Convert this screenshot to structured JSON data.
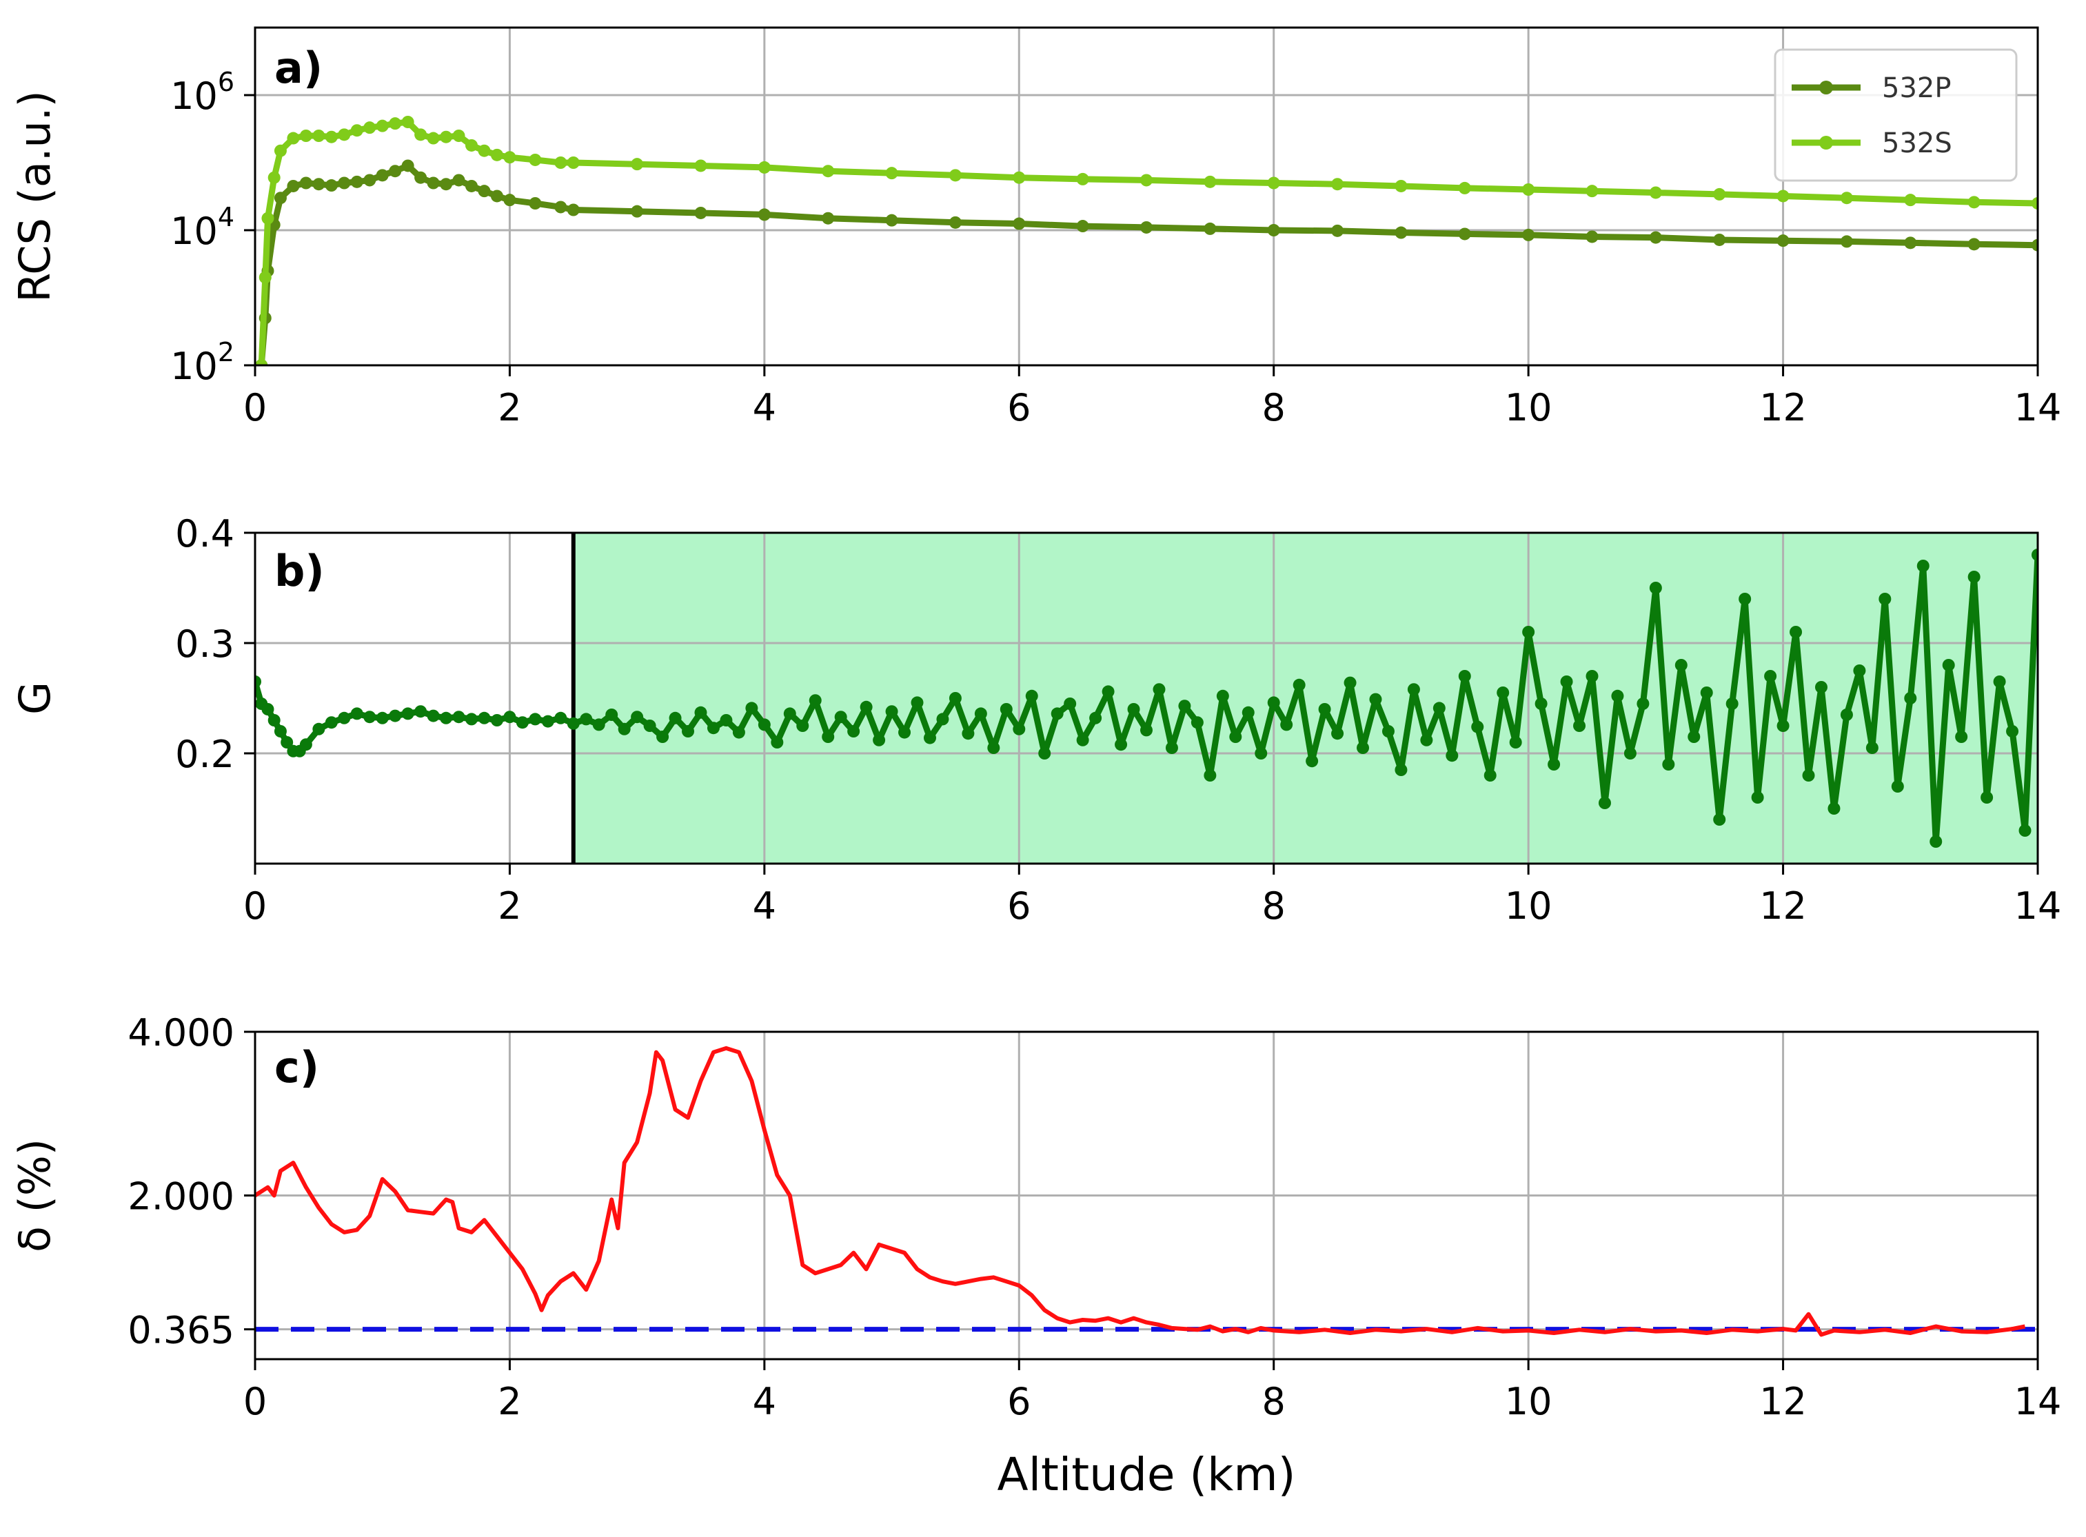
{
  "chart_data": [
    {
      "panel_label": "a)",
      "type": "line",
      "ylabel": "RCS (a.u.)",
      "yscale": "log",
      "xlim": [
        0,
        14
      ],
      "ylim": [
        100,
        10000000
      ],
      "xticks": [
        "0",
        "2",
        "4",
        "6",
        "8",
        "10",
        "12",
        "14"
      ],
      "xtick_values": [
        0,
        2,
        4,
        6,
        8,
        10,
        12,
        14
      ],
      "ytick_values": [
        100,
        10000,
        1000000
      ],
      "yticks": [
        {
          "base": "10",
          "exp": "2"
        },
        {
          "base": "10",
          "exp": "4"
        },
        {
          "base": "10",
          "exp": "6"
        }
      ],
      "grid": true,
      "legend": "top-right",
      "series": [
        {
          "name": "532P",
          "color": "#5a8a12",
          "x": [
            0.05,
            0.08,
            0.1,
            0.15,
            0.2,
            0.3,
            0.4,
            0.5,
            0.6,
            0.7,
            0.8,
            0.9,
            1.0,
            1.1,
            1.2,
            1.3,
            1.4,
            1.5,
            1.6,
            1.7,
            1.8,
            1.9,
            2.0,
            2.2,
            2.4,
            2.5,
            3.0,
            3.5,
            4.0,
            4.5,
            5.0,
            5.5,
            6.0,
            6.5,
            7.0,
            7.5,
            8.0,
            8.5,
            9.0,
            9.5,
            10.0,
            10.5,
            11.0,
            11.5,
            12.0,
            12.5,
            13.0,
            13.5,
            14.0
          ],
          "y": [
            100,
            500,
            2500,
            12000,
            30000,
            45000,
            50000,
            48000,
            46000,
            50000,
            52000,
            55000,
            65000,
            75000,
            90000,
            60000,
            50000,
            48000,
            55000,
            45000,
            38000,
            32000,
            28000,
            25000,
            22000,
            20000,
            19000,
            18000,
            17000,
            15000,
            14000,
            13000,
            12500,
            11500,
            11000,
            10500,
            10000,
            9800,
            9200,
            8800,
            8500,
            8000,
            7800,
            7200,
            7000,
            6800,
            6500,
            6200,
            6000
          ]
        },
        {
          "name": "532S",
          "color": "#80cc1a",
          "x": [
            0.05,
            0.08,
            0.1,
            0.15,
            0.2,
            0.3,
            0.4,
            0.5,
            0.6,
            0.7,
            0.8,
            0.9,
            1.0,
            1.1,
            1.2,
            1.3,
            1.4,
            1.5,
            1.6,
            1.7,
            1.8,
            1.9,
            2.0,
            2.2,
            2.4,
            2.5,
            3.0,
            3.5,
            4.0,
            4.5,
            5.0,
            5.5,
            6.0,
            6.5,
            7.0,
            7.5,
            8.0,
            8.5,
            9.0,
            9.5,
            10.0,
            10.5,
            11.0,
            11.5,
            12.0,
            12.5,
            13.0,
            13.5,
            14.0
          ],
          "y": [
            100,
            2000,
            15000,
            60000,
            150000,
            230000,
            250000,
            250000,
            240000,
            260000,
            300000,
            330000,
            350000,
            380000,
            400000,
            260000,
            230000,
            240000,
            250000,
            180000,
            150000,
            130000,
            120000,
            110000,
            100000,
            100000,
            95000,
            90000,
            85000,
            75000,
            70000,
            65000,
            60000,
            57000,
            55000,
            52000,
            50000,
            48000,
            45000,
            42000,
            40000,
            38000,
            36000,
            34000,
            32000,
            30000,
            28000,
            26000,
            25000
          ]
        }
      ]
    },
    {
      "panel_label": "b)",
      "type": "line",
      "ylabel": "G",
      "xlim": [
        0,
        14
      ],
      "ylim": [
        0.1,
        0.4
      ],
      "xticks": [
        "0",
        "2",
        "4",
        "6",
        "8",
        "10",
        "12",
        "14"
      ],
      "xtick_values": [
        0,
        2,
        4,
        6,
        8,
        10,
        12,
        14
      ],
      "yticks": [
        "0.2",
        "0.3",
        "0.4"
      ],
      "ytick_values": [
        0.2,
        0.3,
        0.4
      ],
      "grid": true,
      "shaded_region": {
        "x_from": 2.5,
        "x_to": 14,
        "color": "#b2f5c8"
      },
      "vertical_line": {
        "x": 2.5,
        "color": "#000000"
      },
      "series": [
        {
          "color": "#0a7a0a",
          "x": [
            0.0,
            0.05,
            0.1,
            0.15,
            0.2,
            0.25,
            0.3,
            0.35,
            0.4,
            0.5,
            0.6,
            0.7,
            0.8,
            0.9,
            1.0,
            1.1,
            1.2,
            1.3,
            1.4,
            1.5,
            1.6,
            1.7,
            1.8,
            1.9,
            2.0,
            2.1,
            2.2,
            2.3,
            2.4,
            2.5,
            2.6,
            2.7,
            2.8,
            2.9,
            3.0,
            3.1,
            3.2,
            3.3,
            3.4,
            3.5,
            3.6,
            3.7,
            3.8,
            3.9,
            4.0,
            4.1,
            4.2,
            4.3,
            4.4,
            4.5,
            4.6,
            4.7,
            4.8,
            4.9,
            5.0,
            5.1,
            5.2,
            5.3,
            5.4,
            5.5,
            5.6,
            5.7,
            5.8,
            5.9,
            6.0,
            6.1,
            6.2,
            6.3,
            6.4,
            6.5,
            6.6,
            6.7,
            6.8,
            6.9,
            7.0,
            7.1,
            7.2,
            7.3,
            7.4,
            7.5,
            7.6,
            7.7,
            7.8,
            7.9,
            8.0,
            8.1,
            8.2,
            8.3,
            8.4,
            8.5,
            8.6,
            8.7,
            8.8,
            8.9,
            9.0,
            9.1,
            9.2,
            9.3,
            9.4,
            9.5,
            9.6,
            9.7,
            9.8,
            9.9,
            10.0,
            10.1,
            10.2,
            10.3,
            10.4,
            10.5,
            10.6,
            10.7,
            10.8,
            10.9,
            11.0,
            11.1,
            11.2,
            11.3,
            11.4,
            11.5,
            11.6,
            11.7,
            11.8,
            11.9,
            12.0,
            12.1,
            12.2,
            12.3,
            12.4,
            12.5,
            12.6,
            12.7,
            12.8,
            12.9,
            13.0,
            13.1,
            13.2,
            13.3,
            13.4,
            13.5,
            13.6,
            13.7,
            13.8,
            13.9,
            14.0
          ],
          "y": [
            0.265,
            0.245,
            0.24,
            0.23,
            0.22,
            0.21,
            0.202,
            0.202,
            0.208,
            0.222,
            0.228,
            0.232,
            0.236,
            0.233,
            0.232,
            0.234,
            0.236,
            0.238,
            0.234,
            0.232,
            0.233,
            0.231,
            0.232,
            0.23,
            0.233,
            0.228,
            0.231,
            0.229,
            0.232,
            0.227,
            0.231,
            0.226,
            0.235,
            0.222,
            0.233,
            0.225,
            0.215,
            0.232,
            0.22,
            0.237,
            0.223,
            0.23,
            0.219,
            0.241,
            0.226,
            0.21,
            0.236,
            0.225,
            0.248,
            0.215,
            0.233,
            0.22,
            0.242,
            0.212,
            0.238,
            0.219,
            0.246,
            0.214,
            0.231,
            0.25,
            0.218,
            0.236,
            0.205,
            0.24,
            0.222,
            0.252,
            0.2,
            0.236,
            0.245,
            0.212,
            0.232,
            0.256,
            0.208,
            0.24,
            0.221,
            0.258,
            0.205,
            0.243,
            0.228,
            0.18,
            0.252,
            0.215,
            0.237,
            0.2,
            0.246,
            0.226,
            0.262,
            0.193,
            0.24,
            0.218,
            0.264,
            0.205,
            0.249,
            0.22,
            0.185,
            0.258,
            0.212,
            0.241,
            0.198,
            0.27,
            0.224,
            0.18,
            0.255,
            0.21,
            0.31,
            0.245,
            0.19,
            0.265,
            0.225,
            0.27,
            0.155,
            0.252,
            0.2,
            0.245,
            0.35,
            0.19,
            0.28,
            0.215,
            0.255,
            0.14,
            0.245,
            0.34,
            0.16,
            0.27,
            0.225,
            0.31,
            0.18,
            0.26,
            0.15,
            0.235,
            0.275,
            0.205,
            0.34,
            0.17,
            0.25,
            0.37,
            0.12,
            0.28,
            0.215,
            0.36,
            0.16,
            0.265,
            0.22,
            0.13,
            0.38
          ]
        }
      ]
    },
    {
      "panel_label": "c)",
      "type": "line",
      "ylabel": "δ (%)",
      "xlabel": "Altitude (km)",
      "xlim": [
        0,
        14
      ],
      "ylim": [
        0.0,
        4.0
      ],
      "xticks": [
        "0",
        "2",
        "4",
        "6",
        "8",
        "10",
        "12",
        "14"
      ],
      "xtick_values": [
        0,
        2,
        4,
        6,
        8,
        10,
        12,
        14
      ],
      "yticks": [
        "0.365",
        "2.000",
        "4.000"
      ],
      "ytick_values": [
        0.365,
        2.0,
        4.0
      ],
      "grid": true,
      "reference_line": {
        "y": 0.365,
        "color": "#1010e0",
        "style": "dashed"
      },
      "series": [
        {
          "color": "#ff1010",
          "x": [
            0.0,
            0.1,
            0.15,
            0.2,
            0.3,
            0.4,
            0.5,
            0.6,
            0.7,
            0.8,
            0.9,
            1.0,
            1.1,
            1.2,
            1.3,
            1.4,
            1.5,
            1.55,
            1.6,
            1.7,
            1.8,
            1.9,
            2.0,
            2.1,
            2.2,
            2.25,
            2.3,
            2.4,
            2.5,
            2.6,
            2.7,
            2.8,
            2.85,
            2.9,
            3.0,
            3.1,
            3.15,
            3.2,
            3.3,
            3.4,
            3.5,
            3.6,
            3.7,
            3.8,
            3.9,
            4.0,
            4.1,
            4.2,
            4.3,
            4.4,
            4.5,
            4.6,
            4.7,
            4.8,
            4.9,
            5.0,
            5.1,
            5.2,
            5.3,
            5.4,
            5.5,
            5.6,
            5.7,
            5.8,
            5.9,
            6.0,
            6.1,
            6.2,
            6.3,
            6.4,
            6.5,
            6.6,
            6.7,
            6.8,
            6.9,
            7.0,
            7.1,
            7.2,
            7.3,
            7.4,
            7.5,
            7.6,
            7.7,
            7.8,
            7.9,
            8.0,
            8.2,
            8.4,
            8.6,
            8.8,
            9.0,
            9.2,
            9.4,
            9.6,
            9.8,
            10.0,
            10.2,
            10.4,
            10.6,
            10.8,
            11.0,
            11.2,
            11.4,
            11.6,
            11.8,
            12.0,
            12.1,
            12.2,
            12.3,
            12.4,
            12.6,
            12.8,
            13.0,
            13.2,
            13.4,
            13.6,
            13.8,
            13.9
          ],
          "y": [
            2.0,
            2.1,
            2.0,
            2.3,
            2.4,
            2.1,
            1.85,
            1.65,
            1.55,
            1.58,
            1.75,
            2.2,
            2.05,
            1.82,
            1.8,
            1.78,
            1.95,
            1.92,
            1.6,
            1.55,
            1.7,
            1.5,
            1.3,
            1.1,
            0.8,
            0.6,
            0.78,
            0.95,
            1.05,
            0.85,
            1.2,
            1.95,
            1.6,
            2.4,
            2.65,
            3.25,
            3.75,
            3.65,
            3.05,
            2.95,
            3.4,
            3.75,
            3.8,
            3.75,
            3.4,
            2.8,
            2.25,
            2.0,
            1.15,
            1.05,
            1.1,
            1.15,
            1.3,
            1.1,
            1.4,
            1.35,
            1.3,
            1.1,
            1.0,
            0.95,
            0.92,
            0.95,
            0.98,
            1.0,
            0.95,
            0.9,
            0.78,
            0.6,
            0.5,
            0.45,
            0.48,
            0.47,
            0.5,
            0.45,
            0.5,
            0.45,
            0.42,
            0.38,
            0.37,
            0.36,
            0.4,
            0.34,
            0.37,
            0.33,
            0.38,
            0.35,
            0.33,
            0.36,
            0.32,
            0.36,
            0.34,
            0.37,
            0.33,
            0.38,
            0.34,
            0.35,
            0.32,
            0.36,
            0.33,
            0.37,
            0.34,
            0.35,
            0.32,
            0.36,
            0.34,
            0.37,
            0.35,
            0.55,
            0.3,
            0.35,
            0.33,
            0.36,
            0.32,
            0.4,
            0.34,
            0.33,
            0.37,
            0.4
          ]
        }
      ]
    }
  ]
}
